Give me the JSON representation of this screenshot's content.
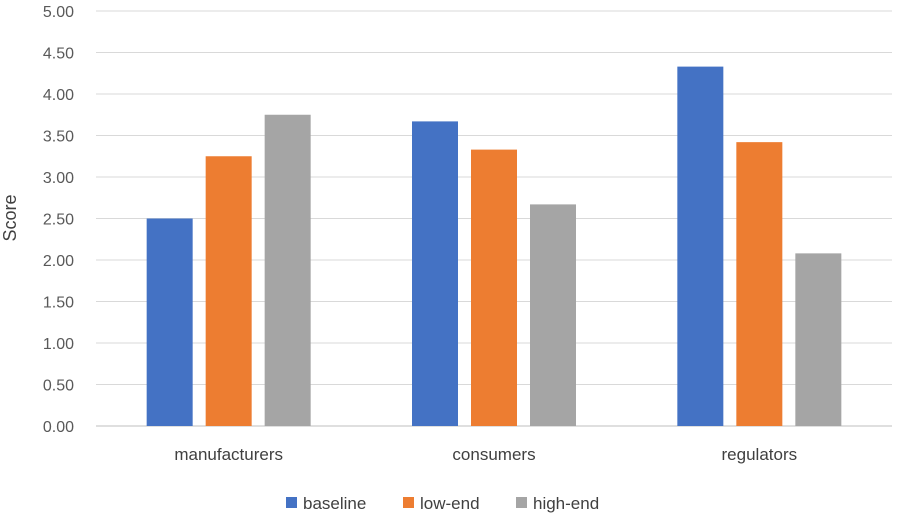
{
  "chart_data": {
    "type": "bar",
    "title": "",
    "xlabel": "",
    "ylabel": "Score",
    "ylim": [
      0,
      5
    ],
    "ytick_step": 0.5,
    "ytick_labels": [
      "0.00",
      "0.50",
      "1.00",
      "1.50",
      "2.00",
      "2.50",
      "3.00",
      "3.50",
      "4.00",
      "4.50",
      "5.00"
    ],
    "grid": true,
    "legend_position": "bottom",
    "categories": [
      "manufacturers",
      "consumers",
      "regulators"
    ],
    "series": [
      {
        "name": "baseline",
        "color": "#4472C4",
        "values": [
          2.5,
          3.67,
          4.33
        ]
      },
      {
        "name": "low-end",
        "color": "#ED7D31",
        "values": [
          3.25,
          3.33,
          3.42
        ]
      },
      {
        "name": "high-end",
        "color": "#A5A5A5",
        "values": [
          3.75,
          2.67,
          2.08
        ]
      }
    ]
  }
}
